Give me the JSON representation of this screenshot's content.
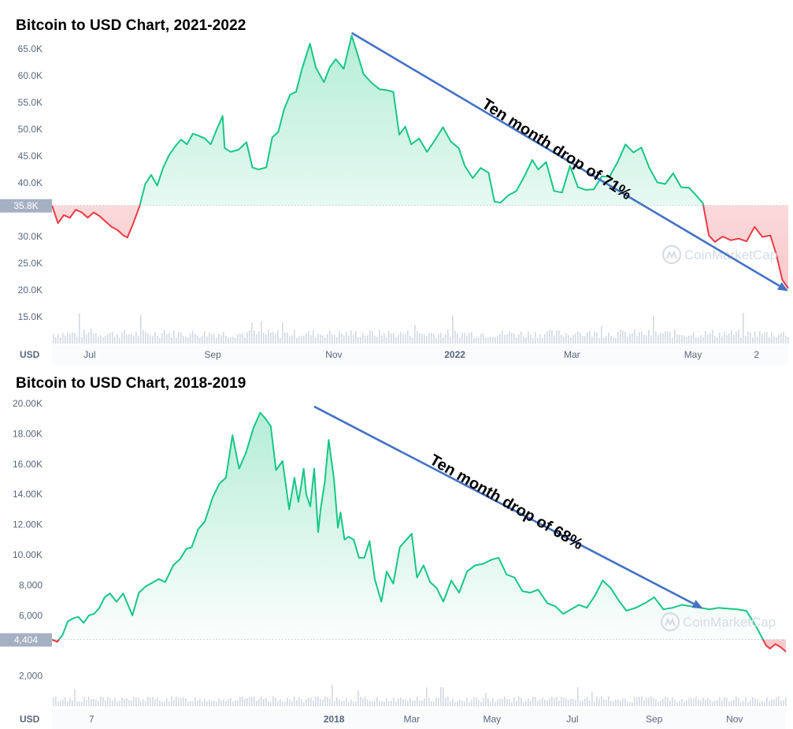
{
  "colors": {
    "up": "#16c784",
    "down": "#ea3943",
    "arrow": "#4472c4",
    "volume": "#d3d8e2",
    "axis_text": "#58667e",
    "marker_bg": "#a6b0c3",
    "grid": "#eff2f5"
  },
  "watermark": "CoinMarketCap",
  "chart_data": [
    {
      "type": "line",
      "title": "Bitcoin to USD Chart, 2021-2022",
      "currency_label": "USD",
      "ylim": [
        10000,
        69000
      ],
      "y_ticks": [
        {
          "value": 15000,
          "label": "15.0K"
        },
        {
          "value": 20000,
          "label": "20.0K"
        },
        {
          "value": 25000,
          "label": "25.0K"
        },
        {
          "value": 30000,
          "label": "30.0K"
        },
        {
          "value": 40000,
          "label": "40.0K"
        },
        {
          "value": 45000,
          "label": "45.0K"
        },
        {
          "value": 50000,
          "label": "50.0K"
        },
        {
          "value": 55000,
          "label": "55.0K"
        },
        {
          "value": 60000,
          "label": "60.0K"
        },
        {
          "value": 65000,
          "label": "65.0K"
        }
      ],
      "x_range": [
        "2021-06-12",
        "2022-06-18"
      ],
      "x_ticks": [
        {
          "date": "2021-07-01",
          "label": "Jul",
          "bold": false
        },
        {
          "date": "2021-09-01",
          "label": "Sep",
          "bold": false
        },
        {
          "date": "2021-11-01",
          "label": "Nov",
          "bold": false
        },
        {
          "date": "2022-01-01",
          "label": "2022",
          "bold": true
        },
        {
          "date": "2022-03-01",
          "label": "Mar",
          "bold": false
        },
        {
          "date": "2022-05-01",
          "label": "May",
          "bold": false
        },
        {
          "date": "2022-06-02",
          "label": "2",
          "bold": false
        }
      ],
      "reference": {
        "value": 35800,
        "label": "35.8K"
      },
      "series": {
        "x": [
          "2021-06-12",
          "2021-06-15",
          "2021-06-18",
          "2021-06-21",
          "2021-06-24",
          "2021-06-27",
          "2021-06-30",
          "2021-07-03",
          "2021-07-06",
          "2021-07-09",
          "2021-07-12",
          "2021-07-15",
          "2021-07-18",
          "2021-07-20",
          "2021-07-23",
          "2021-07-26",
          "2021-07-29",
          "2021-08-01",
          "2021-08-04",
          "2021-08-07",
          "2021-08-10",
          "2021-08-13",
          "2021-08-16",
          "2021-08-19",
          "2021-08-22",
          "2021-08-25",
          "2021-08-28",
          "2021-08-31",
          "2021-09-03",
          "2021-09-06",
          "2021-09-07",
          "2021-09-10",
          "2021-09-14",
          "2021-09-18",
          "2021-09-21",
          "2021-09-24",
          "2021-09-28",
          "2021-10-01",
          "2021-10-04",
          "2021-10-07",
          "2021-10-10",
          "2021-10-13",
          "2021-10-16",
          "2021-10-20",
          "2021-10-23",
          "2021-10-27",
          "2021-10-30",
          "2021-11-02",
          "2021-11-06",
          "2021-11-10",
          "2021-11-13",
          "2021-11-16",
          "2021-11-20",
          "2021-11-24",
          "2021-11-28",
          "2021-12-01",
          "2021-12-04",
          "2021-12-07",
          "2021-12-10",
          "2021-12-14",
          "2021-12-18",
          "2021-12-22",
          "2021-12-26",
          "2021-12-30",
          "2022-01-03",
          "2022-01-06",
          "2022-01-10",
          "2022-01-14",
          "2022-01-18",
          "2022-01-21",
          "2022-01-24",
          "2022-01-28",
          "2022-02-01",
          "2022-02-05",
          "2022-02-09",
          "2022-02-12",
          "2022-02-16",
          "2022-02-20",
          "2022-02-24",
          "2022-02-28",
          "2022-03-04",
          "2022-03-08",
          "2022-03-12",
          "2022-03-16",
          "2022-03-20",
          "2022-03-24",
          "2022-03-28",
          "2022-04-01",
          "2022-04-05",
          "2022-04-09",
          "2022-04-13",
          "2022-04-17",
          "2022-04-21",
          "2022-04-25",
          "2022-04-29",
          "2022-05-03",
          "2022-05-06",
          "2022-05-09",
          "2022-05-12",
          "2022-05-16",
          "2022-05-20",
          "2022-05-24",
          "2022-05-28",
          "2022-06-01",
          "2022-06-05",
          "2022-06-09",
          "2022-06-12",
          "2022-06-15",
          "2022-06-18"
        ],
        "y": [
          35800,
          32500,
          34000,
          33500,
          35000,
          34500,
          33500,
          34500,
          33800,
          32800,
          31800,
          31200,
          30200,
          29800,
          32500,
          35500,
          39800,
          41500,
          39500,
          42800,
          45200,
          46800,
          48100,
          47200,
          49200,
          48800,
          48300,
          47200,
          50000,
          52500,
          46500,
          45800,
          46200,
          47600,
          42900,
          42500,
          42900,
          48500,
          49500,
          53800,
          56500,
          57000,
          61300,
          66000,
          61500,
          58800,
          61600,
          63100,
          61300,
          67500,
          64000,
          60300,
          58700,
          57500,
          57300,
          57000,
          49000,
          50500,
          47200,
          48300,
          45800,
          48000,
          50400,
          47700,
          46500,
          43200,
          40900,
          42800,
          41900,
          36500,
          36300,
          37700,
          38500,
          41200,
          44300,
          42500,
          43900,
          38500,
          38200,
          43200,
          39200,
          38700,
          38800,
          41200,
          41200,
          43900,
          47200,
          45700,
          46600,
          42800,
          40100,
          39800,
          41800,
          39200,
          39100,
          37500,
          36200,
          30200,
          29000,
          30000,
          29300,
          29600,
          29100,
          31800,
          29900,
          30200,
          26600,
          21900,
          20300
        ]
      },
      "volume_max": 16000,
      "arrow": {
        "from": {
          "x": "2021-11-10",
          "y": 68000
        },
        "to": {
          "x": "2022-06-18",
          "y": 19800
        }
      },
      "annotation": {
        "text": "Ten month drop of 71%",
        "at": {
          "x": "2022-02-20",
          "y": 45500
        },
        "angle": 32.5
      }
    },
    {
      "type": "line",
      "title": "Bitcoin to USD Chart, 2018-2019",
      "currency_label": "USD",
      "ylim": [
        0,
        20000
      ],
      "y_ticks": [
        {
          "value": 2000,
          "label": "2,000"
        },
        {
          "value": 6000,
          "label": "6,000"
        },
        {
          "value": 8000,
          "label": "8,000"
        },
        {
          "value": 10000,
          "label": "10.00K"
        },
        {
          "value": 12000,
          "label": "12.00K"
        },
        {
          "value": 14000,
          "label": "14.00K"
        },
        {
          "value": 16000,
          "label": "16.00K"
        },
        {
          "value": 18000,
          "label": "18.00K"
        },
        {
          "value": 20000,
          "label": "20.00K"
        }
      ],
      "x_range": [
        "2017-06-01",
        "2018-12-10"
      ],
      "x_ticks": [
        {
          "date": "2017-07-01",
          "label": "7",
          "bold": false
        },
        {
          "date": "2018-01-01",
          "label": "2018",
          "bold": true
        },
        {
          "date": "2018-03-01",
          "label": "Mar",
          "bold": false
        },
        {
          "date": "2018-05-01",
          "label": "May",
          "bold": false
        },
        {
          "date": "2018-07-01",
          "label": "Jul",
          "bold": false
        },
        {
          "date": "2018-09-01",
          "label": "Sep",
          "bold": false
        },
        {
          "date": "2018-11-01",
          "label": "Nov",
          "bold": false
        }
      ],
      "reference": {
        "value": 4404,
        "label": "4,404"
      },
      "series": {
        "x": [
          "2017-06-01",
          "2017-06-05",
          "2017-06-09",
          "2017-06-13",
          "2017-06-17",
          "2017-06-21",
          "2017-06-25",
          "2017-06-29",
          "2017-07-03",
          "2017-07-07",
          "2017-07-11",
          "2017-07-15",
          "2017-07-20",
          "2017-07-25",
          "2017-08-01",
          "2017-08-06",
          "2017-08-11",
          "2017-08-16",
          "2017-08-21",
          "2017-08-26",
          "2017-09-01",
          "2017-09-06",
          "2017-09-11",
          "2017-09-15",
          "2017-09-20",
          "2017-09-25",
          "2017-10-01",
          "2017-10-06",
          "2017-10-11",
          "2017-10-16",
          "2017-10-21",
          "2017-10-26",
          "2017-11-01",
          "2017-11-06",
          "2017-11-10",
          "2017-11-14",
          "2017-11-18",
          "2017-11-23",
          "2017-11-28",
          "2017-12-02",
          "2017-12-05",
          "2017-12-07",
          "2017-12-09",
          "2017-12-11",
          "2017-12-14",
          "2017-12-17",
          "2017-12-20",
          "2017-12-22",
          "2017-12-25",
          "2017-12-28",
          "2018-01-01",
          "2018-01-04",
          "2018-01-06",
          "2018-01-09",
          "2018-01-12",
          "2018-01-16",
          "2018-01-20",
          "2018-01-24",
          "2018-01-28",
          "2018-02-01",
          "2018-02-06",
          "2018-02-10",
          "2018-02-15",
          "2018-02-20",
          "2018-02-25",
          "2018-03-01",
          "2018-03-05",
          "2018-03-10",
          "2018-03-15",
          "2018-03-20",
          "2018-03-25",
          "2018-03-31",
          "2018-04-06",
          "2018-04-12",
          "2018-04-18",
          "2018-04-24",
          "2018-05-01",
          "2018-05-06",
          "2018-05-12",
          "2018-05-18",
          "2018-05-24",
          "2018-05-30",
          "2018-06-05",
          "2018-06-12",
          "2018-06-18",
          "2018-06-24",
          "2018-06-30",
          "2018-07-06",
          "2018-07-12",
          "2018-07-18",
          "2018-07-24",
          "2018-07-30",
          "2018-08-05",
          "2018-08-11",
          "2018-08-18",
          "2018-08-25",
          "2018-09-01",
          "2018-09-08",
          "2018-09-15",
          "2018-09-22",
          "2018-09-29",
          "2018-10-06",
          "2018-10-13",
          "2018-10-20",
          "2018-10-27",
          "2018-11-03",
          "2018-11-10",
          "2018-11-15",
          "2018-11-19",
          "2018-11-22",
          "2018-11-25",
          "2018-11-28",
          "2018-12-02",
          "2018-12-06",
          "2018-12-10"
        ],
        "y": [
          4404,
          4250,
          4700,
          5600,
          5800,
          5900,
          5500,
          6000,
          6100,
          6500,
          7200,
          7450,
          6900,
          7450,
          6000,
          7500,
          7900,
          8150,
          8400,
          8200,
          9300,
          9700,
          10400,
          10500,
          11700,
          12200,
          13800,
          14700,
          15100,
          17900,
          15700,
          16700,
          18400,
          19400,
          19000,
          18500,
          15600,
          16200,
          13000,
          15100,
          13500,
          14500,
          15700,
          14000,
          13200,
          15700,
          11500,
          13100,
          14800,
          17600,
          15000,
          11800,
          12800,
          11000,
          11200,
          11000,
          9800,
          9800,
          10900,
          8400,
          6900,
          8900,
          8100,
          10500,
          11000,
          11400,
          8500,
          9300,
          8200,
          7800,
          6900,
          8300,
          7500,
          8900,
          9300,
          9400,
          9700,
          9800,
          8700,
          8500,
          7600,
          7500,
          7700,
          6800,
          6600,
          6100,
          6400,
          6700,
          6500,
          7300,
          8300,
          7800,
          7000,
          6300,
          6500,
          6800,
          7200,
          6400,
          6500,
          6700,
          6600,
          6500,
          6400,
          6500,
          6450,
          6400,
          6300,
          5600,
          5000,
          4500,
          4000,
          3800,
          4100,
          3900,
          3600
        ]
      },
      "volume_max": 4000,
      "arrow": {
        "from": {
          "x": "2017-12-17",
          "y": 19800
        },
        "to": {
          "x": "2018-10-08",
          "y": 6450
        }
      },
      "annotation": {
        "text": "Ten month drop of 68%",
        "at": {
          "x": "2018-05-10",
          "y": 13200
        },
        "angle": 30
      }
    }
  ]
}
